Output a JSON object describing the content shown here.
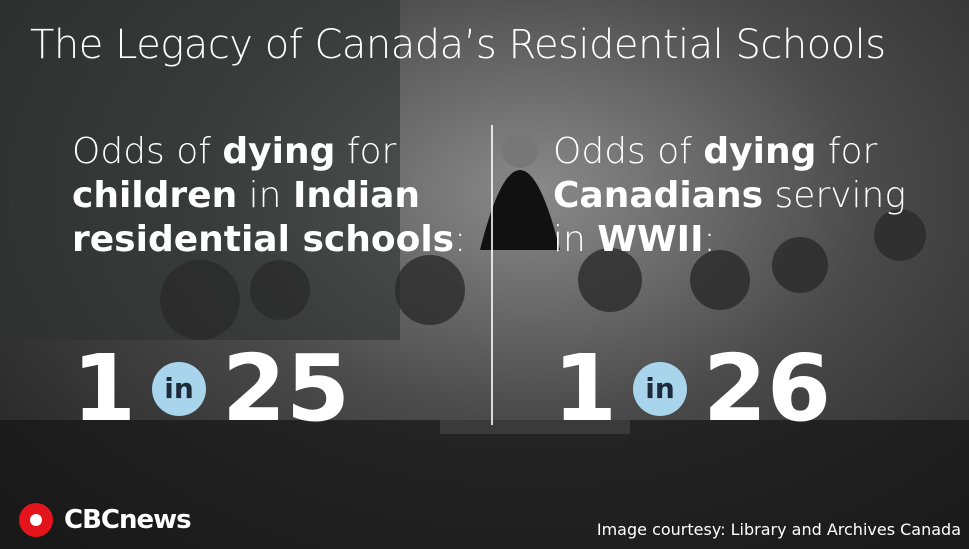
{
  "title": "The Legacy of Canada’s Residential Schools",
  "panels": [
    {
      "lines": [
        [
          {
            "text": "Odds of ",
            "bold": false
          },
          {
            "text": "dying",
            "bold": true
          },
          {
            "text": " for",
            "bold": false
          }
        ],
        [
          {
            "text": "children",
            "bold": true
          },
          {
            "text": " in ",
            "bold": false
          },
          {
            "text": "Indian",
            "bold": true
          }
        ],
        [
          {
            "text": "residential schools",
            "bold": true
          },
          {
            "text": ":",
            "bold": false
          }
        ]
      ],
      "odds": {
        "numerator": 1,
        "word": "in",
        "denominator": 25
      }
    },
    {
      "lines": [
        [
          {
            "text": "Odds of ",
            "bold": false
          },
          {
            "text": "dying",
            "bold": true
          },
          {
            "text": " for",
            "bold": false
          }
        ],
        [
          {
            "text": "Canadians",
            "bold": true
          },
          {
            "text": " serving",
            "bold": false
          }
        ],
        [
          {
            "text": "in ",
            "bold": false
          },
          {
            "text": "WWII",
            "bold": true
          },
          {
            "text": ":",
            "bold": false
          }
        ]
      ],
      "odds": {
        "numerator": 1,
        "word": "in",
        "denominator": 26
      }
    }
  ],
  "logo": "CBCnews",
  "credit": "Image courtesy: Library and Archives Canada"
}
